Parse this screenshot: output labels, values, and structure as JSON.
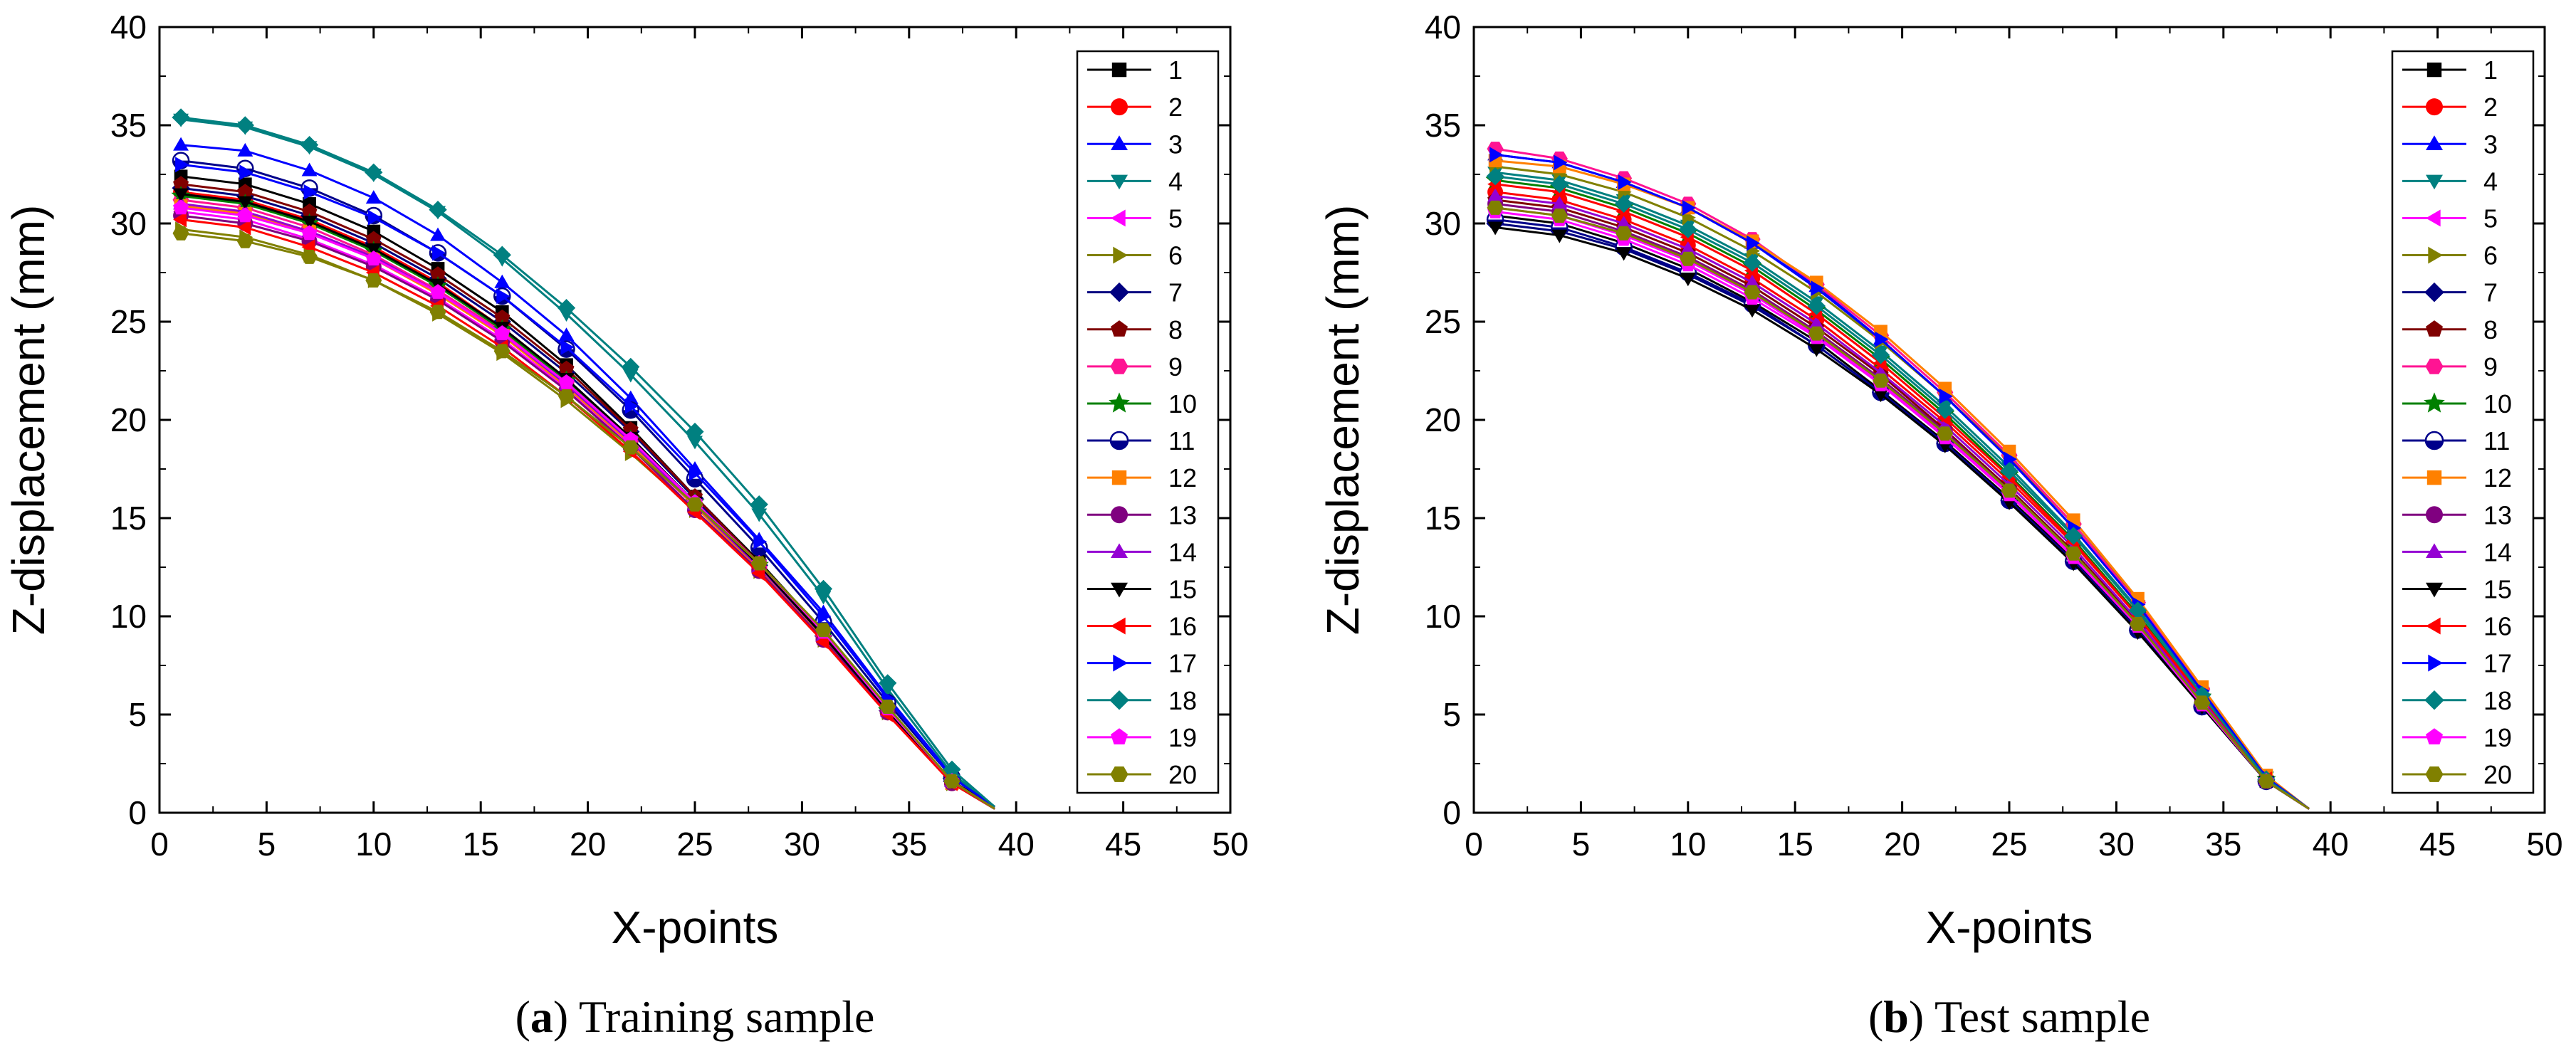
{
  "chart_data": [
    {
      "type": "line",
      "caption": {
        "letter": "a",
        "text": ") Training sample"
      },
      "xlabel": "X-points",
      "ylabel": "Z-displacement (mm)",
      "xlim": [
        0,
        50
      ],
      "ylim": [
        0,
        40
      ],
      "xticks": [
        0,
        5,
        10,
        15,
        20,
        25,
        30,
        35,
        40,
        45,
        50
      ],
      "yticks": [
        0,
        5,
        10,
        15,
        20,
        25,
        30,
        35,
        40
      ],
      "grid": false,
      "legend_position": "top-right",
      "x": [
        1,
        4,
        7,
        10,
        13,
        16,
        19,
        22,
        25,
        28,
        31,
        34,
        37,
        39
      ],
      "series": [
        {
          "name": "1",
          "color": "#000000",
          "marker": "square",
          "values": [
            32.4,
            32.0,
            31.0,
            29.6,
            27.7,
            25.5,
            22.8,
            19.6,
            16.1,
            12.8,
            9.2,
            5.3,
            1.6,
            0.3
          ]
        },
        {
          "name": "2",
          "color": "#ff0000",
          "marker": "circle",
          "values": [
            31.6,
            31.2,
            30.2,
            28.8,
            27.0,
            24.7,
            22.1,
            19.0,
            15.7,
            12.4,
            8.9,
            5.1,
            1.5,
            0.2
          ]
        },
        {
          "name": "3",
          "color": "#0000ff",
          "marker": "triangle-up",
          "values": [
            34.0,
            33.7,
            32.7,
            31.3,
            29.4,
            27.0,
            24.3,
            21.1,
            17.5,
            13.9,
            10.2,
            5.9,
            1.9,
            0.3
          ]
        },
        {
          "name": "4",
          "color": "#008080",
          "marker": "triangle-down",
          "values": [
            35.3,
            34.9,
            33.9,
            32.5,
            30.6,
            28.2,
            25.4,
            22.3,
            18.9,
            15.2,
            11.0,
            6.3,
            2.0,
            0.3
          ]
        },
        {
          "name": "5",
          "color": "#ff00ff",
          "marker": "triangle-left",
          "values": [
            30.6,
            30.2,
            29.2,
            27.9,
            26.2,
            24.1,
            21.6,
            18.7,
            15.6,
            12.4,
            8.9,
            5.2,
            1.6,
            0.2
          ]
        },
        {
          "name": "6",
          "color": "#808000",
          "marker": "triangle-right",
          "values": [
            29.7,
            29.3,
            28.4,
            27.1,
            25.4,
            23.4,
            21.0,
            18.3,
            15.4,
            12.3,
            8.8,
            5.1,
            1.5,
            0.2
          ]
        },
        {
          "name": "7",
          "color": "#000080",
          "marker": "diamond",
          "values": [
            31.8,
            31.4,
            30.4,
            29.0,
            27.2,
            25.0,
            22.4,
            19.4,
            16.0,
            12.6,
            9.0,
            5.2,
            1.6,
            0.3
          ]
        },
        {
          "name": "8",
          "color": "#800000",
          "marker": "pentagon",
          "values": [
            32.0,
            31.6,
            30.6,
            29.2,
            27.4,
            25.2,
            22.6,
            19.5,
            16.1,
            12.7,
            9.1,
            5.3,
            1.6,
            0.3
          ]
        },
        {
          "name": "9",
          "color": "#ff1493",
          "marker": "hexagon",
          "values": [
            31.2,
            30.8,
            29.8,
            28.4,
            26.6,
            24.5,
            21.9,
            18.9,
            15.6,
            12.5,
            9.0,
            5.2,
            1.6,
            0.2
          ]
        },
        {
          "name": "10",
          "color": "#008000",
          "marker": "star",
          "values": [
            31.4,
            31.0,
            30.0,
            28.6,
            26.8,
            24.6,
            22.0,
            19.0,
            15.8,
            12.6,
            9.0,
            5.2,
            1.6,
            0.3
          ]
        },
        {
          "name": "11",
          "color": "#00008b",
          "marker": "half-circle",
          "values": [
            33.2,
            32.8,
            31.8,
            30.4,
            28.5,
            26.3,
            23.6,
            20.5,
            17.0,
            13.5,
            9.7,
            5.6,
            1.8,
            0.3
          ]
        },
        {
          "name": "12",
          "color": "#ff8000",
          "marker": "square",
          "values": [
            30.9,
            30.5,
            29.6,
            28.2,
            26.4,
            24.3,
            21.7,
            18.8,
            15.6,
            12.4,
            8.9,
            5.2,
            1.5,
            0.2
          ]
        },
        {
          "name": "13",
          "color": "#800080",
          "marker": "circle",
          "values": [
            30.4,
            30.0,
            29.1,
            27.8,
            26.1,
            24.0,
            21.5,
            18.6,
            15.4,
            12.3,
            8.8,
            5.1,
            1.5,
            0.2
          ]
        },
        {
          "name": "14",
          "color": "#9400d3",
          "marker": "triangle-up",
          "values": [
            31.0,
            30.6,
            29.6,
            28.3,
            26.5,
            24.4,
            21.8,
            18.9,
            15.7,
            12.5,
            9.0,
            5.2,
            1.6,
            0.2
          ]
        },
        {
          "name": "15",
          "color": "#000000",
          "marker": "triangle-down",
          "values": [
            31.5,
            31.1,
            30.1,
            28.7,
            26.9,
            24.7,
            22.1,
            19.1,
            15.8,
            12.6,
            9.0,
            5.2,
            1.6,
            0.3
          ]
        },
        {
          "name": "16",
          "color": "#ff0000",
          "marker": "triangle-left",
          "values": [
            30.2,
            29.8,
            28.8,
            27.5,
            25.8,
            23.7,
            21.2,
            18.4,
            15.3,
            12.2,
            8.7,
            5.0,
            1.5,
            0.2
          ]
        },
        {
          "name": "17",
          "color": "#0000ff",
          "marker": "triangle-right",
          "values": [
            33.0,
            32.6,
            31.6,
            30.3,
            28.5,
            26.3,
            23.7,
            20.7,
            17.3,
            13.8,
            10.0,
            5.8,
            1.8,
            0.3
          ]
        },
        {
          "name": "18",
          "color": "#008080",
          "marker": "diamond",
          "values": [
            35.4,
            35.0,
            34.0,
            32.6,
            30.7,
            28.4,
            25.7,
            22.7,
            19.4,
            15.7,
            11.4,
            6.6,
            2.2,
            0.3
          ]
        },
        {
          "name": "19",
          "color": "#ff00ff",
          "marker": "pentagon",
          "values": [
            30.8,
            30.4,
            29.5,
            28.2,
            26.5,
            24.4,
            21.9,
            19.0,
            15.8,
            12.7,
            9.2,
            5.3,
            1.6,
            0.2
          ]
        },
        {
          "name": "20",
          "color": "#808000",
          "marker": "hexagon",
          "values": [
            29.5,
            29.1,
            28.3,
            27.1,
            25.5,
            23.5,
            21.2,
            18.6,
            15.7,
            12.7,
            9.3,
            5.4,
            1.6,
            0.2
          ]
        }
      ]
    },
    {
      "type": "line",
      "caption": {
        "letter": "b",
        "text": ") Test sample"
      },
      "xlabel": "X-points",
      "ylabel": "Z-displacement (mm)",
      "xlim": [
        0,
        50
      ],
      "ylim": [
        0,
        40
      ],
      "xticks": [
        0,
        5,
        10,
        15,
        20,
        25,
        30,
        35,
        40,
        45,
        50
      ],
      "yticks": [
        0,
        5,
        10,
        15,
        20,
        25,
        30,
        35,
        40
      ],
      "grid": false,
      "legend_position": "top-right",
      "x": [
        1,
        4,
        7,
        10,
        13,
        16,
        19,
        22,
        25,
        28,
        31,
        34,
        37,
        39
      ],
      "series": [
        {
          "name": "1",
          "color": "#000000",
          "marker": "square",
          "values": [
            30.4,
            30.0,
            29.0,
            27.7,
            26.0,
            24.0,
            21.5,
            18.9,
            16.0,
            12.9,
            9.4,
            5.5,
            1.6,
            0.2
          ]
        },
        {
          "name": "2",
          "color": "#ff0000",
          "marker": "circle",
          "values": [
            31.6,
            31.2,
            30.2,
            28.9,
            27.2,
            25.1,
            22.6,
            19.9,
            16.9,
            13.7,
            10.0,
            5.8,
            1.7,
            0.2
          ]
        },
        {
          "name": "3",
          "color": "#0000ff",
          "marker": "triangle-up",
          "values": [
            33.5,
            33.1,
            32.1,
            30.8,
            29.0,
            26.8,
            24.1,
            21.2,
            18.0,
            14.5,
            10.6,
            6.2,
            1.8,
            0.2
          ]
        },
        {
          "name": "4",
          "color": "#008080",
          "marker": "triangle-down",
          "values": [
            32.6,
            32.2,
            31.2,
            29.9,
            28.2,
            26.0,
            23.5,
            20.7,
            17.6,
            14.2,
            10.4,
            6.1,
            1.8,
            0.2
          ]
        },
        {
          "name": "5",
          "color": "#ff00ff",
          "marker": "triangle-left",
          "values": [
            30.8,
            30.4,
            29.4,
            28.1,
            26.4,
            24.3,
            21.9,
            19.2,
            16.3,
            13.1,
            9.5,
            5.6,
            1.6,
            0.2
          ]
        },
        {
          "name": "6",
          "color": "#808000",
          "marker": "triangle-right",
          "values": [
            32.9,
            32.5,
            31.6,
            30.3,
            28.6,
            26.5,
            24.0,
            21.2,
            18.1,
            14.7,
            10.8,
            6.3,
            1.8,
            0.2
          ]
        },
        {
          "name": "7",
          "color": "#000080",
          "marker": "diamond",
          "values": [
            30.0,
            29.6,
            28.7,
            27.4,
            25.8,
            23.8,
            21.4,
            18.8,
            15.9,
            12.8,
            9.3,
            5.4,
            1.6,
            0.2
          ]
        },
        {
          "name": "8",
          "color": "#800000",
          "marker": "pentagon",
          "values": [
            31.2,
            30.8,
            29.8,
            28.5,
            26.8,
            24.7,
            22.3,
            19.5,
            16.5,
            13.3,
            9.7,
            5.7,
            1.7,
            0.2
          ]
        },
        {
          "name": "9",
          "color": "#ff1493",
          "marker": "hexagon",
          "values": [
            33.8,
            33.3,
            32.3,
            31.0,
            29.2,
            26.9,
            24.3,
            21.4,
            18.2,
            14.7,
            10.7,
            6.3,
            1.8,
            0.2
          ]
        },
        {
          "name": "10",
          "color": "#008000",
          "marker": "star",
          "values": [
            32.2,
            31.8,
            30.8,
            29.5,
            27.8,
            25.6,
            23.1,
            20.3,
            17.2,
            13.9,
            10.1,
            5.9,
            1.7,
            0.2
          ]
        },
        {
          "name": "11",
          "color": "#00008b",
          "marker": "half-circle",
          "values": [
            30.2,
            29.8,
            28.8,
            27.5,
            25.9,
            23.8,
            21.4,
            18.8,
            15.9,
            12.8,
            9.3,
            5.4,
            1.6,
            0.2
          ]
        },
        {
          "name": "12",
          "color": "#ff8000",
          "marker": "square",
          "values": [
            33.2,
            32.9,
            32.0,
            30.8,
            29.1,
            27.0,
            24.5,
            21.6,
            18.4,
            14.9,
            10.9,
            6.4,
            1.9,
            0.2
          ]
        },
        {
          "name": "13",
          "color": "#800080",
          "marker": "circle",
          "values": [
            31.0,
            30.6,
            29.6,
            28.3,
            26.6,
            24.5,
            22.1,
            19.4,
            16.4,
            13.2,
            9.6,
            5.6,
            1.6,
            0.2
          ]
        },
        {
          "name": "14",
          "color": "#9400d3",
          "marker": "triangle-up",
          "values": [
            31.4,
            31.0,
            30.0,
            28.7,
            27.0,
            24.9,
            22.4,
            19.7,
            16.7,
            13.5,
            9.8,
            5.7,
            1.7,
            0.2
          ]
        },
        {
          "name": "15",
          "color": "#000000",
          "marker": "triangle-down",
          "values": [
            29.8,
            29.4,
            28.5,
            27.2,
            25.6,
            23.6,
            21.3,
            18.7,
            15.8,
            12.7,
            9.2,
            5.4,
            1.6,
            0.2
          ]
        },
        {
          "name": "16",
          "color": "#ff0000",
          "marker": "triangle-left",
          "values": [
            32.0,
            31.6,
            30.6,
            29.3,
            27.6,
            25.4,
            22.9,
            20.1,
            17.1,
            13.8,
            10.0,
            5.9,
            1.7,
            0.2
          ]
        },
        {
          "name": "17",
          "color": "#0000ff",
          "marker": "triangle-right",
          "values": [
            33.5,
            33.1,
            32.1,
            30.8,
            29.0,
            26.7,
            24.1,
            21.2,
            18.0,
            14.5,
            10.6,
            6.2,
            1.8,
            0.2
          ]
        },
        {
          "name": "18",
          "color": "#008080",
          "marker": "diamond",
          "values": [
            32.4,
            32.0,
            31.0,
            29.7,
            28.0,
            25.8,
            23.3,
            20.5,
            17.4,
            14.1,
            10.3,
            6.0,
            1.7,
            0.2
          ]
        },
        {
          "name": "19",
          "color": "#ff00ff",
          "marker": "pentagon",
          "values": [
            30.6,
            30.2,
            29.2,
            27.9,
            26.2,
            24.2,
            21.8,
            19.1,
            16.2,
            13.0,
            9.5,
            5.5,
            1.6,
            0.2
          ]
        },
        {
          "name": "20",
          "color": "#808000",
          "marker": "hexagon",
          "values": [
            30.8,
            30.4,
            29.5,
            28.2,
            26.5,
            24.4,
            22.0,
            19.3,
            16.4,
            13.2,
            9.6,
            5.6,
            1.6,
            0.2
          ]
        }
      ]
    }
  ]
}
